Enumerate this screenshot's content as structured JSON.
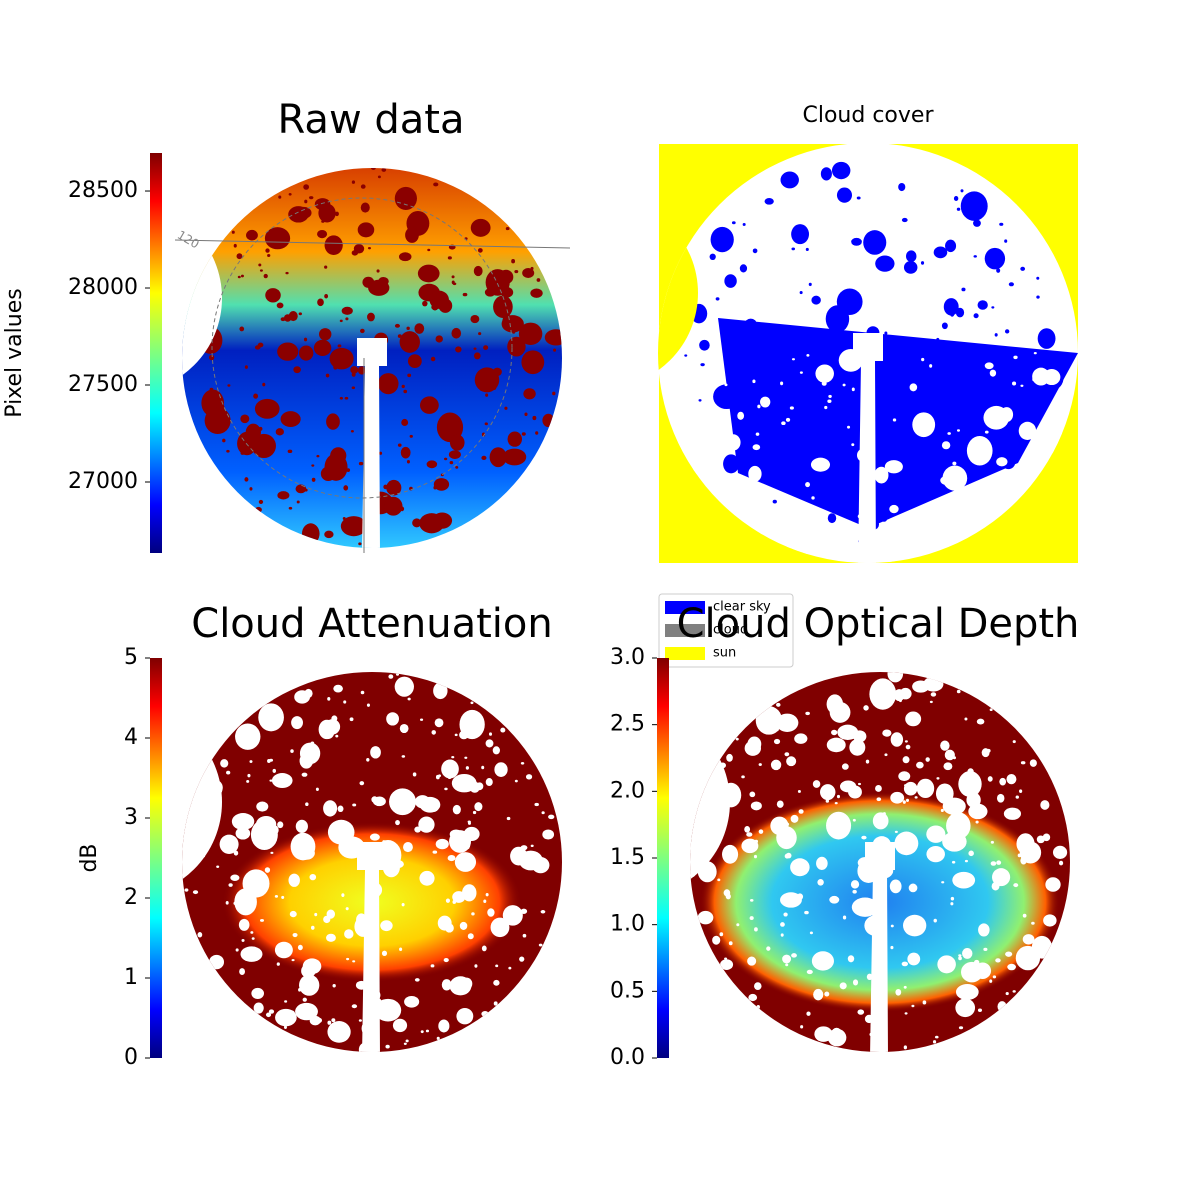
{
  "chart_data": [
    {
      "type": "image",
      "title": "Raw data",
      "colorbar_label": "Pixel values",
      "clim": [
        26634,
        28696
      ],
      "cticks": [
        27000,
        27500,
        28000,
        28500
      ],
      "colormap": "jet",
      "annotations": [
        "120"
      ]
    },
    {
      "type": "image",
      "title": "Cloud cover",
      "legend": [
        {
          "name": "clear sky",
          "color": "#0000ff"
        },
        {
          "name": "cloud",
          "color": "#808080"
        },
        {
          "name": "sun",
          "color": "#ffff00"
        }
      ]
    },
    {
      "type": "image",
      "title": "Cloud Attenuation",
      "colorbar_label": "dB",
      "clim": [
        0,
        5
      ],
      "cticks": [
        0,
        1,
        2,
        3,
        4,
        5
      ],
      "colormap": "jet"
    },
    {
      "type": "image",
      "title": "Cloud Optical Depth",
      "clim": [
        0,
        3
      ],
      "cticks": [
        {
          "value": 0,
          "label": "0.0"
        },
        0.5,
        {
          "value": 1,
          "label": "1.0"
        },
        1.5,
        {
          "value": 2,
          "label": "2.0"
        },
        2.5,
        {
          "value": 3,
          "label": "3.0"
        }
      ],
      "colormap": "jet"
    }
  ]
}
